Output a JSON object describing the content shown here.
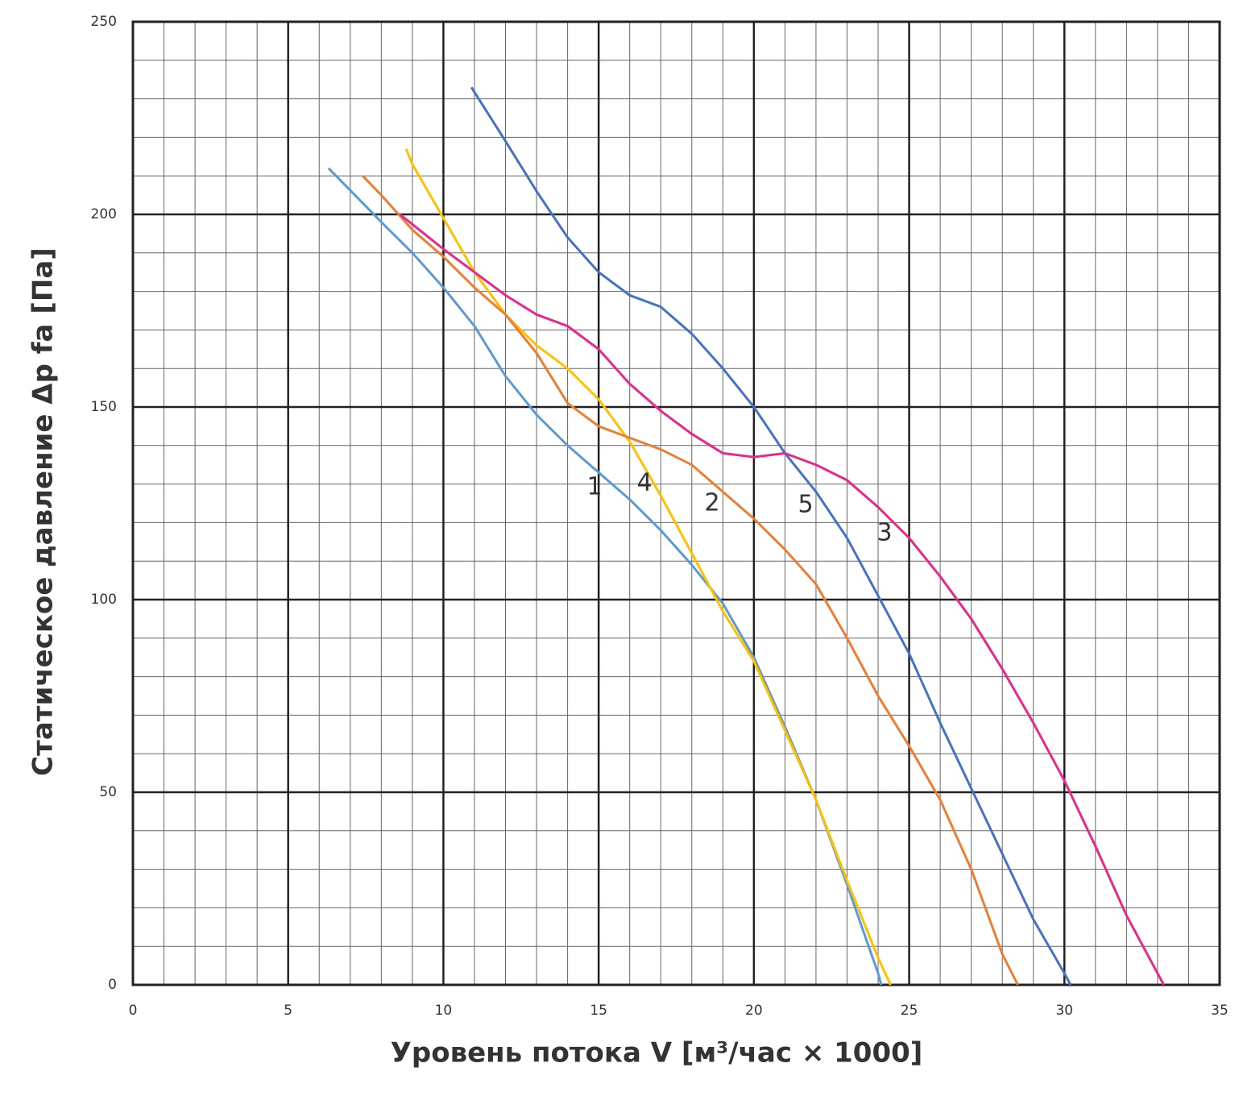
{
  "chart_data": {
    "type": "line",
    "x_label": "Уровень потока V [м³/час × 1000]",
    "y_label": "Статическое давление Δp fa [Па]",
    "xlim": [
      0,
      35
    ],
    "ylim": [
      0,
      250
    ],
    "xticks": [
      0,
      5,
      10,
      15,
      20,
      25,
      30,
      35
    ],
    "yticks": [
      0,
      50,
      100,
      150,
      200,
      250
    ],
    "x_minor_ticks": [
      1,
      2,
      3,
      4,
      6,
      7,
      8,
      9,
      11,
      12,
      13,
      14,
      16,
      17,
      18,
      19,
      21,
      22,
      23,
      24,
      26,
      27,
      28,
      29,
      31,
      32,
      33,
      34
    ],
    "y_minor_ticks": [
      10,
      20,
      30,
      40,
      60,
      70,
      80,
      90,
      110,
      120,
      130,
      140,
      160,
      170,
      180,
      190,
      210,
      220,
      230,
      240
    ],
    "grid": true,
    "series": [
      {
        "name": "1",
        "color": "#5b9bd5",
        "x": [
          6.3,
          8,
          9,
          10,
          11,
          12,
          13,
          14,
          15,
          16,
          17,
          18,
          19,
          20,
          21,
          22,
          23,
          24,
          24.1
        ],
        "values": [
          212,
          198,
          190,
          181,
          171,
          158,
          148,
          140,
          133,
          126,
          118,
          109,
          99,
          85,
          67,
          48,
          26,
          3,
          0
        ]
      },
      {
        "name": "4",
        "color": "#ffc000",
        "x": [
          8.8,
          9,
          10,
          11,
          12,
          13,
          14,
          15,
          16,
          17,
          18,
          19,
          20,
          21,
          22,
          23,
          24,
          24.4
        ],
        "values": [
          217,
          213,
          199,
          185,
          174,
          166,
          160,
          152,
          141,
          127,
          112,
          97,
          84,
          66,
          48,
          27,
          7,
          0
        ]
      },
      {
        "name": "2",
        "color": "#ed7d31",
        "x": [
          7.4,
          8,
          9,
          10,
          11,
          12,
          13,
          14,
          15,
          16,
          17,
          18,
          19,
          20,
          21,
          22,
          23,
          24,
          25,
          26,
          27,
          28,
          28.5
        ],
        "values": [
          210,
          205,
          196,
          189,
          181,
          174,
          164,
          151,
          145,
          142,
          139,
          135,
          128,
          121,
          113,
          104,
          90,
          75,
          62,
          48,
          30,
          8,
          0
        ]
      },
      {
        "name": "5",
        "color": "#4472c4",
        "x": [
          10.9,
          12,
          13,
          14,
          15,
          16,
          17,
          18,
          19,
          20,
          21,
          22,
          23,
          24,
          25,
          26,
          27,
          28,
          29,
          30,
          30.2
        ],
        "values": [
          233,
          219,
          206,
          194,
          185,
          179,
          176,
          169,
          160,
          150,
          138,
          128,
          116,
          101,
          86,
          68,
          51,
          34,
          17,
          3,
          0
        ]
      },
      {
        "name": "3",
        "color": "#e7298a",
        "x": [
          8.6,
          10,
          11,
          12,
          13,
          14,
          15,
          16,
          17,
          18,
          19,
          20,
          21,
          22,
          23,
          24,
          25,
          26,
          27,
          28,
          29,
          30,
          31,
          32,
          33,
          33.2
        ],
        "values": [
          200,
          191,
          185,
          179,
          174,
          171,
          165,
          156,
          149,
          143,
          138,
          137,
          138,
          135,
          131,
          124,
          116,
          106,
          95,
          82,
          68,
          53,
          36,
          18,
          3,
          0
        ]
      }
    ]
  }
}
